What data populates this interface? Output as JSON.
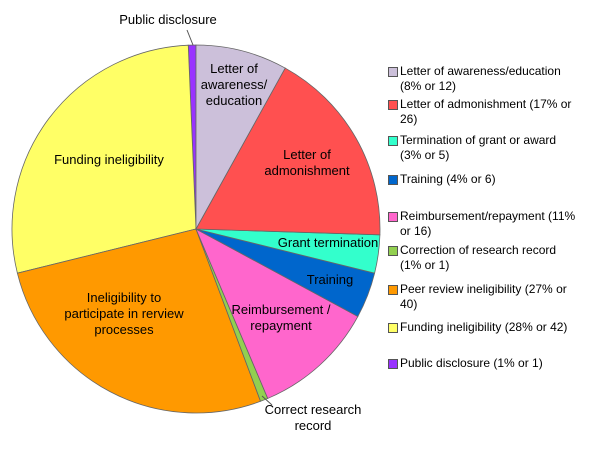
{
  "chart_data": {
    "type": "pie",
    "categories": [
      "Letter of awareness/education (8% or 12)",
      "Letter of admonishment (17% or 26)",
      "Termination of grant or award (3% or 5)",
      "Training (4% or 6)",
      "Reimbursement/repayment (11% or 16)",
      "Correction of research record (1% or 1)",
      "Peer review ineligibility (27% or 40)",
      "Funding ineligibility (28% or 42)",
      "Public disclosure (1% or 1)"
    ],
    "values": [
      12,
      26,
      5,
      6,
      16,
      1,
      40,
      42,
      1
    ],
    "colors": [
      "#ccc0da",
      "#ff5050",
      "#33ffcc",
      "#0066cc",
      "#ff66cc",
      "#92d050",
      "#ff9900",
      "#ffff66",
      "#9933ff"
    ],
    "slice_labels": [
      "Letter of awareness/ education",
      "Letter of admonishment",
      "Grant termination",
      "Training",
      "Reimbursement / repayment",
      "Correct research record",
      "Ineligibility to participate in rerview processes",
      "Funding ineligibility",
      "Public disclosure"
    ],
    "legend": "right"
  }
}
